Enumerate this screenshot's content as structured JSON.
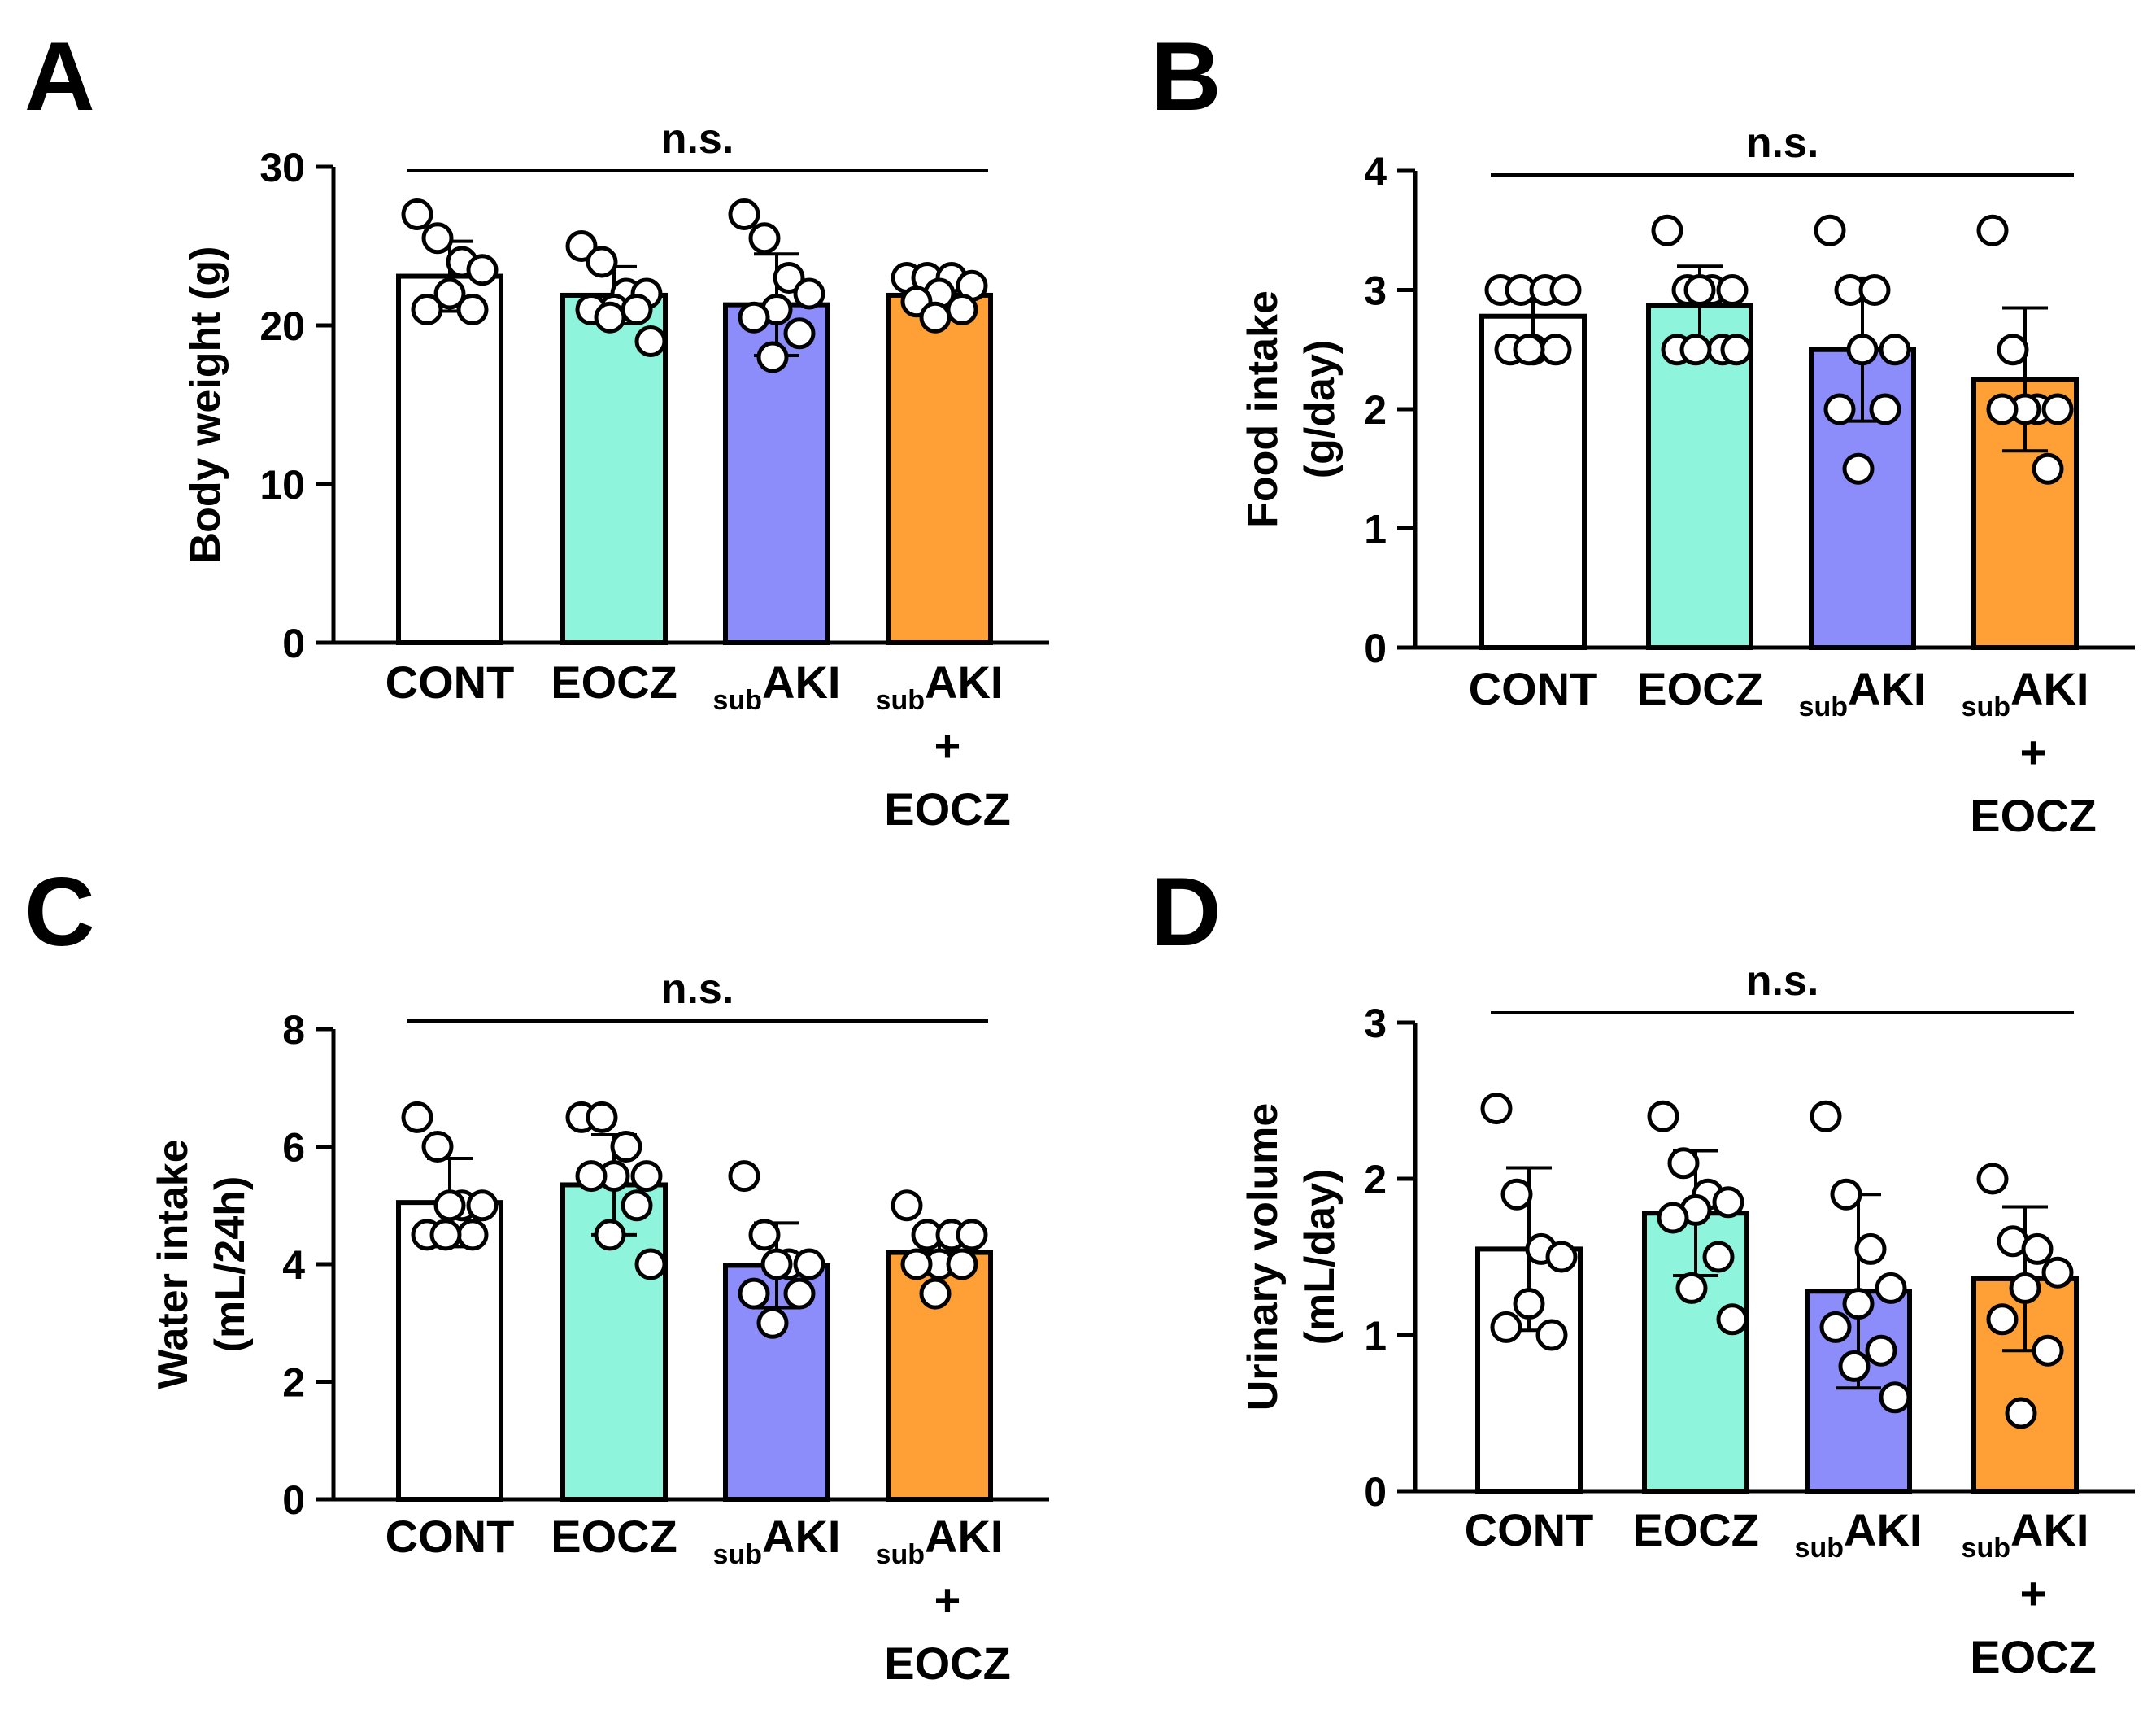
{
  "colors": {
    "CONT": "#ffffff",
    "EOCZ": "#8ef5dc",
    "subAKI": "#8c8cfa",
    "subAKI + EOCZ": "#ffa037",
    "stroke": "#000000"
  },
  "chart_data": [
    {
      "panel": "A",
      "type": "bar",
      "title": "",
      "ylabel_lines": [
        "Body weight (g)"
      ],
      "ylim": [
        0,
        30
      ],
      "yticks": [
        0,
        10,
        20,
        30
      ],
      "categories": [
        {
          "key": "CONT",
          "prefix": "",
          "main": "CONT",
          "extra": []
        },
        {
          "key": "EOCZ",
          "prefix": "",
          "main": "EOCZ",
          "extra": []
        },
        {
          "key": "subAKI",
          "prefix": "sub",
          "main": "AKI",
          "extra": []
        },
        {
          "key": "subAKI + EOCZ",
          "prefix": "sub",
          "main": "AKI",
          "extra": [
            "+",
            "EOCZ"
          ]
        }
      ],
      "values": [
        23.1,
        21.9,
        21.3,
        21.9
      ],
      "errors": [
        2.2,
        1.8,
        3.2,
        0.8
      ],
      "points": [
        [
          27,
          25.5,
          24,
          23.5,
          22,
          21,
          21
        ],
        [
          25,
          24,
          22,
          22,
          21,
          21,
          21,
          20.5,
          19
        ],
        [
          27,
          25.5,
          23,
          22,
          21,
          20.5,
          19.5,
          18
        ],
        [
          23,
          23,
          23,
          22.5,
          22,
          21.5,
          21,
          20.5
        ]
      ],
      "significance": "n.s."
    },
    {
      "panel": "B",
      "type": "bar",
      "title": "",
      "ylabel_lines": [
        "Food intake",
        "(g/day)"
      ],
      "ylim": [
        0,
        4
      ],
      "yticks": [
        0,
        1,
        2,
        3,
        4
      ],
      "categories": [
        {
          "key": "CONT",
          "prefix": "",
          "main": "CONT",
          "extra": []
        },
        {
          "key": "EOCZ",
          "prefix": "",
          "main": "EOCZ",
          "extra": []
        },
        {
          "key": "subAKI",
          "prefix": "sub",
          "main": "AKI",
          "extra": []
        },
        {
          "key": "subAKI + EOCZ",
          "prefix": "sub",
          "main": "AKI",
          "extra": [
            "+",
            "EOCZ"
          ]
        }
      ],
      "values": [
        2.78,
        2.87,
        2.5,
        2.25
      ],
      "errors": [
        0.25,
        0.33,
        0.6,
        0.6
      ],
      "points": [
        [
          3,
          3,
          3,
          3,
          2.5,
          2.5,
          2.5,
          2.5
        ],
        [
          3.5,
          3,
          3,
          3,
          3,
          2.5,
          2.5,
          2.5,
          2.5
        ],
        [
          3.5,
          3,
          3,
          2.5,
          2.5,
          2,
          2,
          1.5
        ],
        [
          3.5,
          2.5,
          2,
          2,
          2,
          2,
          1.5
        ]
      ],
      "significance": "n.s."
    },
    {
      "panel": "C",
      "type": "bar",
      "title": "",
      "ylabel_lines": [
        "Water intake",
        "(mL/24h)"
      ],
      "ylim": [
        0,
        8
      ],
      "yticks": [
        0,
        2,
        4,
        6,
        8
      ],
      "categories": [
        {
          "key": "CONT",
          "prefix": "",
          "main": "CONT",
          "extra": []
        },
        {
          "key": "EOCZ",
          "prefix": "",
          "main": "EOCZ",
          "extra": []
        },
        {
          "key": "subAKI",
          "prefix": "sub",
          "main": "AKI",
          "extra": []
        },
        {
          "key": "subAKI + EOCZ",
          "prefix": "sub",
          "main": "AKI",
          "extra": [
            "+",
            "EOCZ"
          ]
        }
      ],
      "values": [
        5.05,
        5.35,
        3.98,
        4.2
      ],
      "errors": [
        0.75,
        0.85,
        0.72,
        0.35
      ],
      "points": [
        [
          6.5,
          6,
          5,
          5,
          5,
          4.5,
          4.5,
          4.5
        ],
        [
          6.5,
          6.5,
          6,
          5.5,
          5.5,
          5.5,
          5,
          4.5,
          4
        ],
        [
          5.5,
          4.5,
          4,
          4,
          4,
          3.5,
          3.5,
          3
        ],
        [
          5,
          4.5,
          4.5,
          4.5,
          4,
          4,
          4,
          3.5
        ]
      ],
      "significance": "n.s."
    },
    {
      "panel": "D",
      "type": "bar",
      "title": "",
      "ylabel_lines": [
        "Urinary volume",
        "(mL/day)"
      ],
      "ylim": [
        0,
        3
      ],
      "yticks": [
        0,
        1,
        2,
        3
      ],
      "categories": [
        {
          "key": "CONT",
          "prefix": "",
          "main": "CONT",
          "extra": []
        },
        {
          "key": "EOCZ",
          "prefix": "",
          "main": "EOCZ",
          "extra": []
        },
        {
          "key": "subAKI",
          "prefix": "sub",
          "main": "AKI",
          "extra": []
        },
        {
          "key": "subAKI + EOCZ",
          "prefix": "sub",
          "main": "AKI",
          "extra": [
            "+",
            "EOCZ"
          ]
        }
      ],
      "values": [
        1.55,
        1.78,
        1.28,
        1.36
      ],
      "errors": [
        0.52,
        0.4,
        0.62,
        0.46
      ],
      "points": [
        [
          2.45,
          1.9,
          1.55,
          1.5,
          1.2,
          1.05,
          1
        ],
        [
          2.4,
          2.1,
          1.9,
          1.85,
          1.8,
          1.75,
          1.5,
          1.3,
          1.1
        ],
        [
          2.4,
          1.9,
          1.55,
          1.3,
          1.2,
          1.05,
          0.9,
          0.8,
          0.6
        ],
        [
          2,
          1.6,
          1.55,
          1.4,
          1.3,
          1.1,
          0.9,
          0.5
        ]
      ],
      "significance": "n.s."
    }
  ]
}
